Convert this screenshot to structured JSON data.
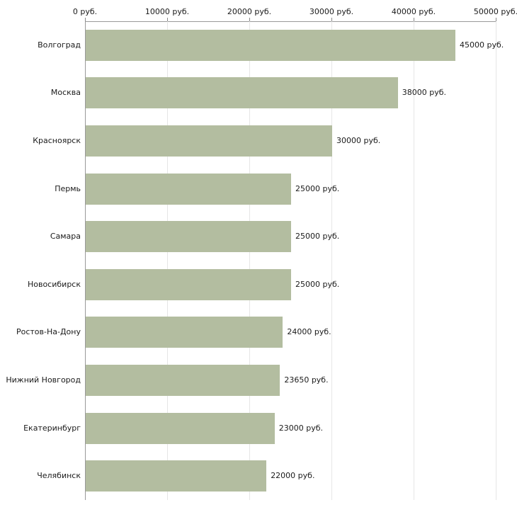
{
  "chart_data": {
    "type": "bar",
    "orientation": "horizontal",
    "title": "",
    "xlabel": "",
    "ylabel": "",
    "grid": true,
    "legend": "none",
    "xlim": [
      0,
      50000
    ],
    "x_ticks": [
      0,
      10000,
      20000,
      30000,
      40000,
      50000
    ],
    "x_tick_labels": [
      "0 руб.",
      "10000 руб.",
      "20000 руб.",
      "30000 руб.",
      "40000 руб.",
      "50000 руб."
    ],
    "categories": [
      "Волгоград",
      "Москва",
      "Красноярск",
      "Пермь",
      "Самара",
      "Новосибирск",
      "Ростов-На-Дону",
      "Нижний Новгород",
      "Екатеринбург",
      "Челябинск"
    ],
    "values": [
      45000,
      38000,
      30000,
      25000,
      25000,
      25000,
      24000,
      23650,
      23000,
      22000
    ],
    "value_labels": [
      "45000 руб.",
      "38000 руб.",
      "30000 руб.",
      "25000 руб.",
      "25000 руб.",
      "25000 руб.",
      "24000 руб.",
      "23650 руб.",
      "23000 руб.",
      "22000 руб."
    ],
    "bar_color": "#b3bda0",
    "axis_color": "#999999",
    "grid_color": "#e6e6e6",
    "text_color": "#1a1a1a"
  }
}
